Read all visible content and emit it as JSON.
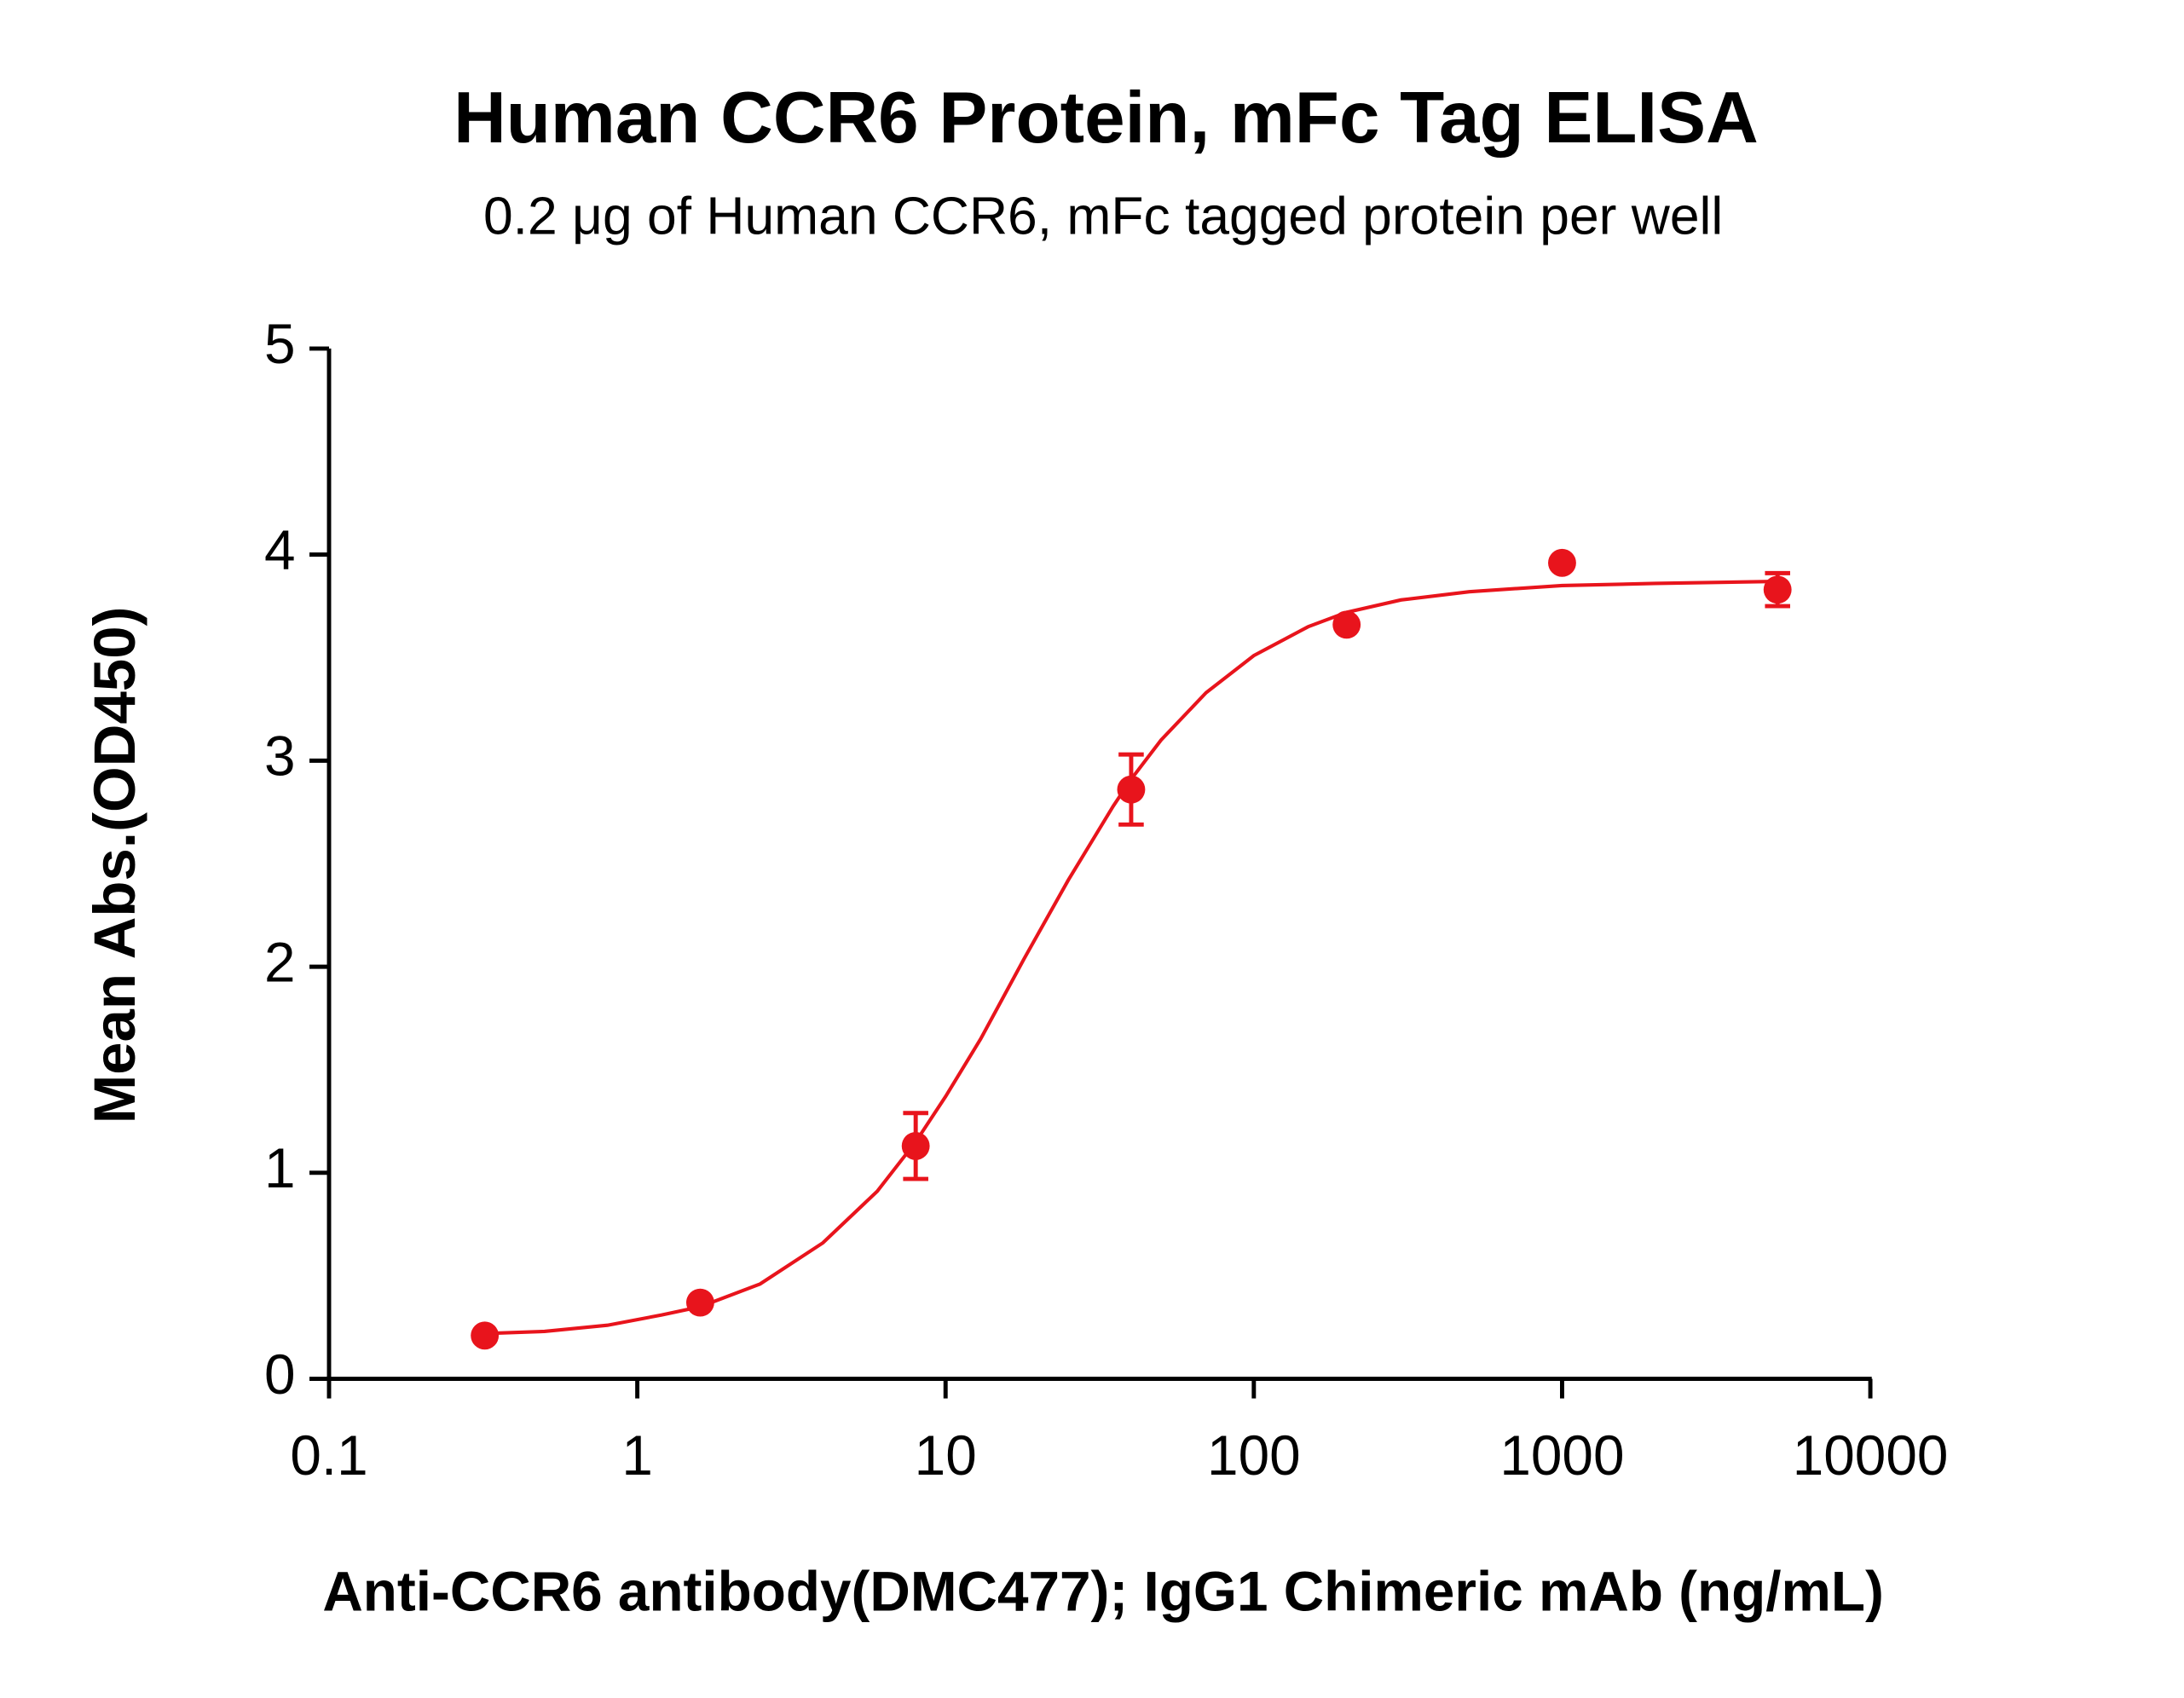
{
  "chart_data": {
    "type": "scatter",
    "title": "Human CCR6 Protein, mFc Tag ELISA",
    "subtitle": "0.2 μg of Human CCR6, mFc tagged protein per well",
    "xlabel": "Anti-CCR6 antibody(DMC477); IgG1 Chimeric mAb (ng/mL)",
    "ylabel": "Mean Abs.(OD450)",
    "xscale": "log",
    "xlim": [
      0.1,
      10000
    ],
    "xticks": [
      0.1,
      1,
      10,
      100,
      1000,
      10000
    ],
    "ylim": [
      0,
      5
    ],
    "yticks": [
      0,
      1,
      2,
      3,
      4,
      5
    ],
    "grid": false,
    "series": [
      {
        "color": "#e8141c",
        "x": [
          0.32,
          1.6,
          8,
          40,
          200,
          1000,
          5000
        ],
        "values": [
          0.21,
          0.37,
          1.13,
          2.86,
          3.66,
          3.96,
          3.83
        ],
        "errors": [
          0,
          0,
          0.16,
          0.17,
          0,
          0,
          0.08
        ]
      }
    ],
    "fit": {
      "color": "#e8141c",
      "x": [
        0.32,
        0.5,
        0.8,
        1.2,
        1.6,
        2.5,
        4,
        6,
        8,
        10,
        13,
        18,
        25,
        35,
        40,
        50,
        70,
        100,
        150,
        200,
        300,
        500,
        1000,
        2000,
        5000
      ],
      "values": [
        0.22,
        0.23,
        0.26,
        0.31,
        0.35,
        0.46,
        0.66,
        0.91,
        1.15,
        1.37,
        1.65,
        2.04,
        2.42,
        2.78,
        2.91,
        3.1,
        3.33,
        3.51,
        3.65,
        3.72,
        3.78,
        3.82,
        3.85,
        3.86,
        3.87
      ]
    }
  }
}
